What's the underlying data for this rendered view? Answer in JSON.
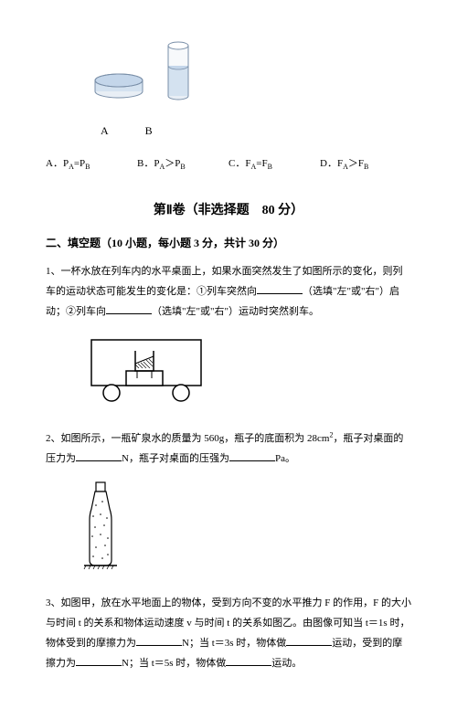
{
  "figAB": {
    "labelA": "A",
    "labelB": "B"
  },
  "options": {
    "A": "A．P<sub>A</sub>=P<sub>B</sub>",
    "B": "B．P<sub>A</sub>＞P<sub>B</sub>",
    "C": "C．F<sub>A</sub>=F<sub>B</sub>",
    "D": "D．F<sub>A</sub>＞F<sub>B</sub>"
  },
  "sectionTitle": "第Ⅱ卷（非选择题　80 分）",
  "subTitle": "二、填空题（10 小题，每小题 3 分，共计 30 分）",
  "q1": {
    "pre": "1、一杯水放在列车内的水平桌面上，如果水面突然发生了如图所示的变化，则列车的运动状态可能发生的变化是：①列车突然向",
    "mid1": "（选填\"左\"或\"右\"）启动；②列车向",
    "mid2": "（选填\"左\"或\"右\"）运动时突然刹车。"
  },
  "q2": {
    "pre": "2、如图所示，一瓶矿泉水的质量为 560g，瓶子的底面积为 28cm<sup>2</sup>，瓶子对桌面的压力为",
    "mid": "N，瓶子对桌面的压强为",
    "end": "Pa。"
  },
  "q3": {
    "pre": "3、如图甲，放在水平地面上的物体，受到方向不变的水平推力 F 的作用，F 的大小与时间 t 的关系和物体运动速度 v 与时间 t 的关系如图乙。由图像可知当 t＝1s 时，物体受到的摩擦力为",
    "mid1": "N；当 t＝3s 时，物体做",
    "mid2": "运动，受到的摩擦力为",
    "mid3": "N；当 t＝5s 时，物体做",
    "end": "运动。"
  }
}
